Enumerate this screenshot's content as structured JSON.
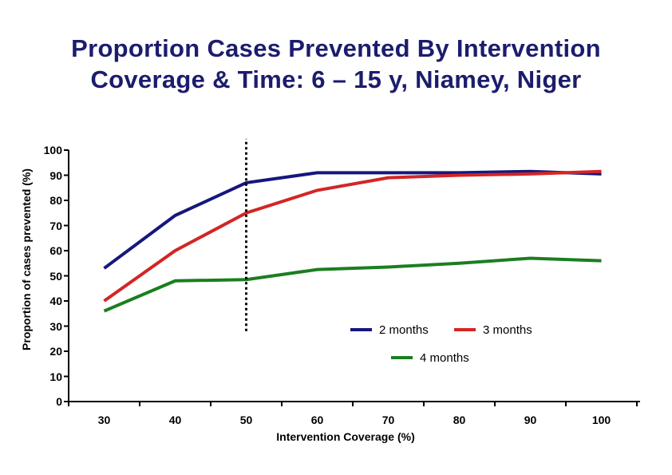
{
  "title": {
    "line1": "Proportion Cases Prevented By Intervention",
    "line2": "Coverage & Time: 6 – 15 y, Niamey, Niger",
    "color": "#1c1c6e"
  },
  "chart_data": {
    "type": "line",
    "categories": [
      30,
      40,
      50,
      60,
      70,
      80,
      90,
      100
    ],
    "series": [
      {
        "name": "2 months",
        "color": "#16167e",
        "values": [
          53,
          74,
          87,
          91,
          91,
          91,
          91.5,
          90.5
        ]
      },
      {
        "name": "3 months",
        "color": "#d32525",
        "values": [
          40,
          60,
          75,
          84,
          89,
          90,
          90.5,
          91.5
        ]
      },
      {
        "name": "4 months",
        "color": "#1b7e1f",
        "values": [
          36,
          48,
          48.5,
          52.5,
          53.5,
          55,
          57,
          56
        ]
      }
    ],
    "xlabel": "Intervention Coverage (%)",
    "ylabel": "Proportion of cases prevented (%)",
    "ylim": [
      0,
      100
    ],
    "y_ticks": [
      0,
      10,
      20,
      30,
      40,
      50,
      60,
      70,
      80,
      90,
      100
    ],
    "reference_line": {
      "x": 50,
      "from": 28,
      "to": 104.5,
      "style": "dotted",
      "color": "#000000"
    },
    "legend_position": "inside-right",
    "grid": false,
    "axis_color": "#000000"
  }
}
